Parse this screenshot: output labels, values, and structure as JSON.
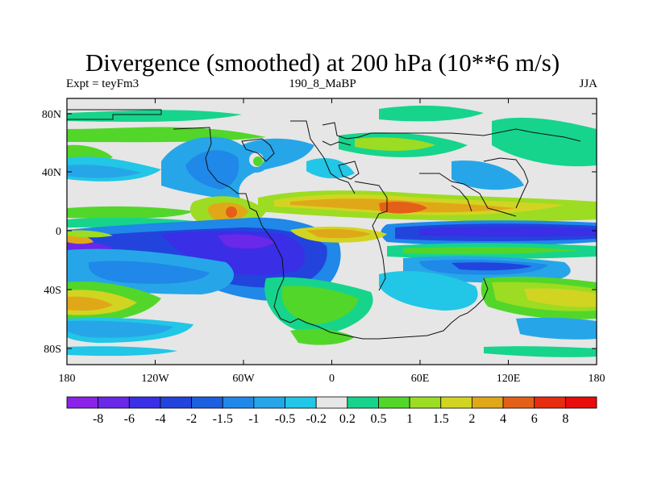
{
  "title": "Divergence (smoothed) at 200 hPa (10**6 m/s)",
  "subtitle_left": "Expt = teyFm3",
  "subtitle_center": "190_8_MaBP",
  "subtitle_right": "JJA",
  "y_ticks": [
    "80N",
    "40N",
    "0",
    "40S",
    "80S"
  ],
  "x_ticks": [
    "180",
    "120W",
    "60W",
    "0",
    "60E",
    "120E",
    "180"
  ],
  "colorbar": {
    "labels": [
      "-8",
      "-6",
      "-4",
      "-2",
      "-1.5",
      "-1",
      "-0.5",
      "-0.2",
      "0.2",
      "0.5",
      "1",
      "1.5",
      "2",
      "4",
      "6",
      "8"
    ],
    "colors": [
      "#8a22e8",
      "#6a28e8",
      "#3a2ee6",
      "#2244dd",
      "#1c5fe0",
      "#1f88e8",
      "#26a6e8",
      "#22c6e6",
      "#e6e6e6",
      "#16d48c",
      "#52d62a",
      "#9cdc22",
      "#d2d422",
      "#e0a818",
      "#e46018",
      "#e82c10",
      "#e80c0c"
    ]
  }
}
